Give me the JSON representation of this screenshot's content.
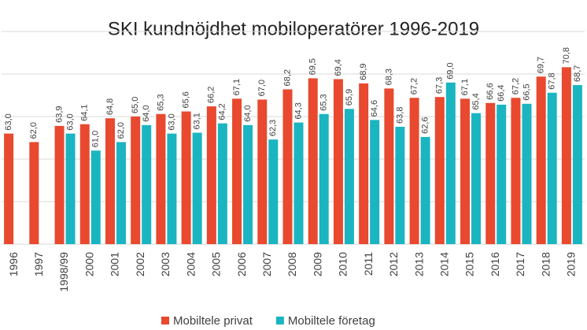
{
  "chart_data": {
    "type": "bar",
    "title": "SKI kundnöjdhet mobiloperatörer 1996-2019",
    "categories": [
      "1996",
      "1997",
      "1998/99",
      "2000",
      "2001",
      "2002",
      "2003",
      "2004",
      "2005",
      "2006",
      "2007",
      "2008",
      "2009",
      "2010",
      "2011",
      "2012",
      "2013",
      "2014",
      "2015",
      "2016",
      "2017",
      "2018",
      "2019"
    ],
    "series": [
      {
        "name": "Mobiltele privat",
        "color": "#e8492f",
        "values": [
          63.0,
          62.0,
          63.9,
          64.1,
          64.8,
          65.0,
          65.3,
          65.6,
          66.2,
          67.1,
          67.0,
          68.2,
          69.5,
          69.4,
          68.9,
          68.3,
          67.2,
          67.3,
          67.1,
          66.6,
          67.2,
          69.7,
          70.8
        ],
        "value_labels": [
          "63,0",
          "62,0",
          "63,9",
          "64,1",
          "64,8",
          "65,0",
          "65,3",
          "65,6",
          "66,2",
          "67,1",
          "67,0",
          "68,2",
          "69,5",
          "69,4",
          "68,9",
          "68,3",
          "67,2",
          "67,3",
          "67,1",
          "66,6",
          "67,2",
          "69,7",
          "70,8"
        ]
      },
      {
        "name": "Mobiltele företag",
        "color": "#1ab5c0",
        "values": [
          null,
          null,
          63.0,
          61.0,
          62.0,
          64.0,
          63.0,
          63.1,
          64.2,
          64.0,
          62.3,
          64.3,
          65.3,
          65.9,
          64.6,
          63.8,
          62.6,
          69.0,
          65.4,
          66.4,
          66.5,
          67.8,
          68.7
        ],
        "value_labels": [
          null,
          null,
          "63,0",
          "61,0",
          "62,0",
          "64,0",
          "63,0",
          "63,1",
          "64,2",
          "64,0",
          "62,3",
          "64,3",
          "65,3",
          "65,9",
          "64,6",
          "63,8",
          "62,6",
          "69,0",
          "65,4",
          "66,4",
          "66,5",
          "67,8",
          "68,7"
        ]
      }
    ],
    "ylim": [
      50,
      75
    ],
    "yticks": [
      50,
      55,
      60,
      65,
      70,
      75
    ],
    "grid": true,
    "legend": "bottom"
  }
}
